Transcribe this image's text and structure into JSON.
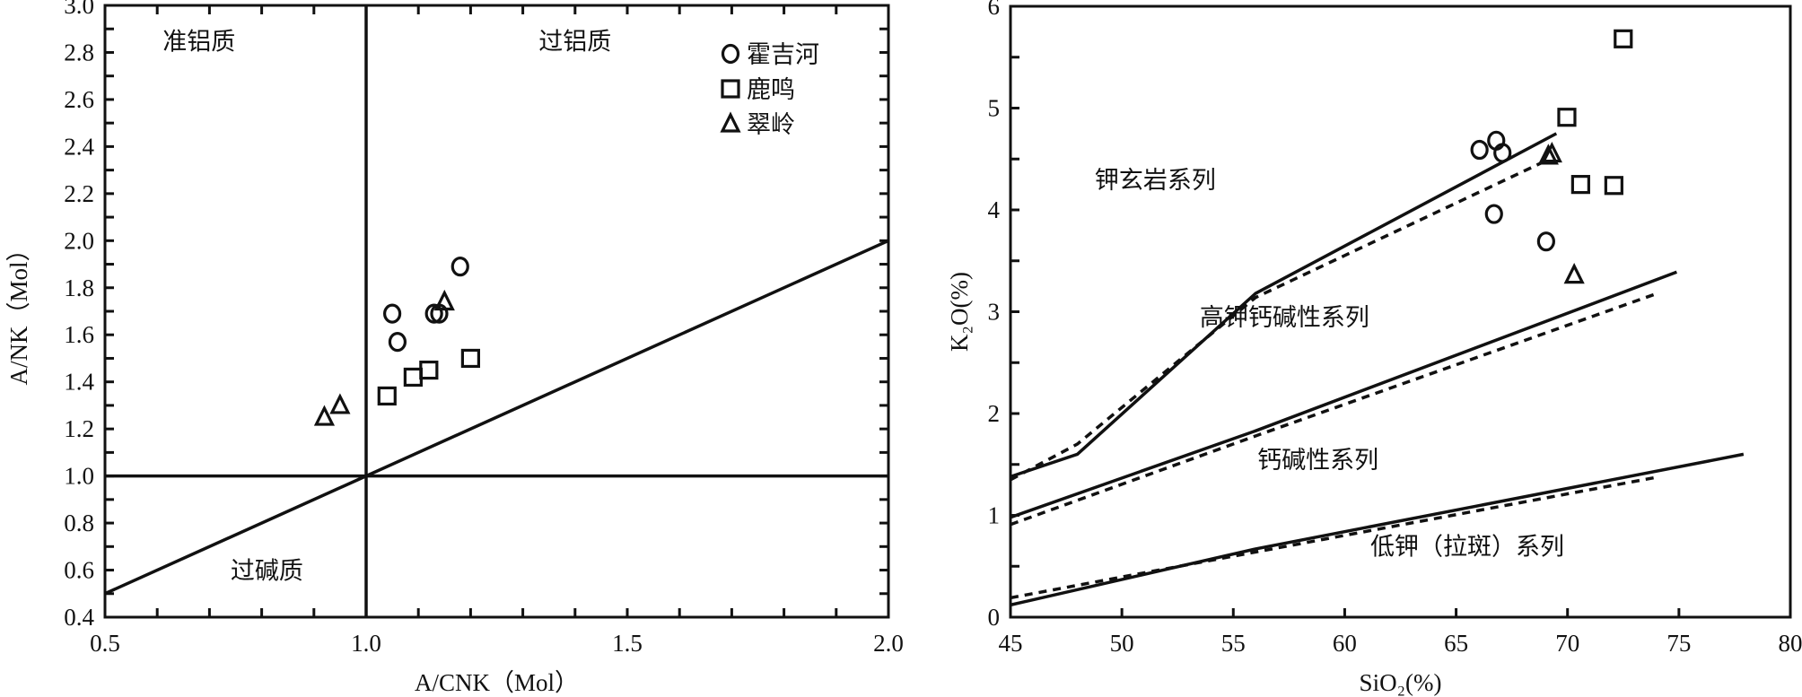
{
  "chart_data": [
    {
      "type": "scatter",
      "title": "",
      "xlabel": "A/CNK（Mol）",
      "ylabel": "A/NK（Mol）",
      "xlim": [
        0.5,
        2.0
      ],
      "ylim": [
        0.4,
        3.0
      ],
      "xticks": [
        "0.5",
        "1.0",
        "1.5",
        "2.0"
      ],
      "yticks": [
        "0.4",
        "0.6",
        "0.8",
        "1.0",
        "1.2",
        "1.4",
        "1.6",
        "1.8",
        "2.0",
        "2.2",
        "2.4",
        "2.6",
        "2.8",
        "3.0"
      ],
      "grid": false,
      "legend_position": "top-right",
      "regions": [
        {
          "label": "准铝质",
          "x": 0.68,
          "y": 2.85
        },
        {
          "label": "过铝质",
          "x": 1.4,
          "y": 2.85
        },
        {
          "label": "过碱质",
          "x": 0.81,
          "y": 0.6
        }
      ],
      "reference_lines": [
        {
          "name": "A/CNK=1",
          "points": [
            [
              1.0,
              0.4
            ],
            [
              1.0,
              3.0
            ]
          ]
        },
        {
          "name": "A/NK=1",
          "points": [
            [
              0.5,
              1.0
            ],
            [
              2.0,
              1.0
            ]
          ]
        },
        {
          "name": "A/NK=A/CNK",
          "points": [
            [
              0.5,
              0.5
            ],
            [
              2.0,
              2.0
            ]
          ]
        }
      ],
      "series": [
        {
          "name": "霍吉河",
          "marker": "circle",
          "points": [
            [
              1.05,
              1.69
            ],
            [
              1.06,
              1.57
            ],
            [
              1.13,
              1.69
            ],
            [
              1.14,
              1.69
            ],
            [
              1.18,
              1.89
            ]
          ]
        },
        {
          "name": "鹿鸣",
          "marker": "square",
          "points": [
            [
              1.04,
              1.34
            ],
            [
              1.09,
              1.42
            ],
            [
              1.12,
              1.45
            ],
            [
              1.2,
              1.5
            ]
          ]
        },
        {
          "name": "翠岭",
          "marker": "triangle",
          "points": [
            [
              0.92,
              1.25
            ],
            [
              0.95,
              1.3
            ],
            [
              1.15,
              1.74
            ]
          ]
        }
      ]
    },
    {
      "type": "scatter",
      "title": "",
      "xlabel": "SiO₂(%)",
      "ylabel": "K₂O(%)",
      "xlim": [
        45,
        80
      ],
      "ylim": [
        0,
        6
      ],
      "xticks": [
        "45",
        "50",
        "55",
        "60",
        "65",
        "70",
        "75",
        "80"
      ],
      "yticks": [
        "0",
        "1",
        "2",
        "3",
        "4",
        "5",
        "6"
      ],
      "grid": false,
      "regions": [
        {
          "label": "钾玄岩系列",
          "x": 51.5,
          "y": 4.3
        },
        {
          "label": "高钾钙碱性系列",
          "x": 57.3,
          "y": 2.95
        },
        {
          "label": "钙碱性系列",
          "x": 58.8,
          "y": 1.55
        },
        {
          "label": "低钾（拉斑）系列",
          "x": 65.5,
          "y": 0.7
        }
      ],
      "boundary_lines": [
        {
          "style": "solid",
          "points": [
            [
              45,
              1.38
            ],
            [
              48,
              1.6
            ],
            [
              56,
              3.18
            ],
            [
              69.5,
              4.75
            ]
          ]
        },
        {
          "style": "dashed",
          "points": [
            [
              45,
              1.35
            ],
            [
              48,
              1.7
            ],
            [
              56,
              3.14
            ],
            [
              69.1,
              4.49
            ]
          ]
        },
        {
          "style": "solid",
          "points": [
            [
              45,
              0.98
            ],
            [
              56,
              1.83
            ],
            [
              74.9,
              3.39
            ]
          ]
        },
        {
          "style": "dashed",
          "points": [
            [
              45,
              0.91
            ],
            [
              56,
              1.78
            ],
            [
              73.9,
              3.17
            ]
          ]
        },
        {
          "style": "solid",
          "points": [
            [
              45,
              0.12
            ],
            [
              56,
              0.67
            ],
            [
              77.9,
              1.6
            ]
          ]
        },
        {
          "style": "dashed",
          "points": [
            [
              45,
              0.19
            ],
            [
              56,
              0.64
            ],
            [
              73.9,
              1.37
            ]
          ]
        }
      ],
      "series": [
        {
          "name": "霍吉河",
          "marker": "circle",
          "points": [
            [
              66.05,
              4.59
            ],
            [
              66.8,
              4.68
            ],
            [
              67.08,
              4.56
            ],
            [
              66.7,
              3.96
            ],
            [
              69.04,
              3.69
            ]
          ]
        },
        {
          "name": "鹿鸣",
          "marker": "square",
          "points": [
            [
              72.5,
              5.68
            ],
            [
              69.97,
              4.91
            ],
            [
              70.59,
              4.25
            ],
            [
              72.08,
              4.24
            ]
          ]
        },
        {
          "name": "翠岭",
          "marker": "triangle",
          "points": [
            [
              69.14,
              4.53
            ],
            [
              69.3,
              4.55
            ],
            [
              70.3,
              3.36
            ]
          ]
        }
      ]
    }
  ]
}
